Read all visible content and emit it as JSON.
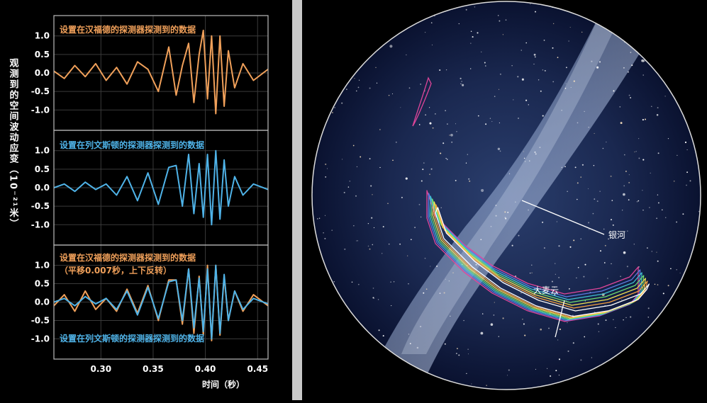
{
  "chart_data": [
    {
      "type": "line",
      "ylabel": "观测到的空间波动应变（10⁻²¹米）",
      "xlabel": "时间（秒）",
      "xlim": [
        0.255,
        0.46
      ],
      "ylim": [
        -1.55,
        1.55
      ],
      "x_ticks": [
        "0.30",
        "0.35",
        "0.40",
        "0.45"
      ],
      "x_tick_values": [
        0.3,
        0.35,
        0.4,
        0.45
      ],
      "y_ticks": [
        "1.0",
        "0.5",
        "0.0",
        "-0.5",
        "-1.0"
      ],
      "y_tick_values": [
        1.0,
        0.5,
        0.0,
        -0.5,
        -1.0
      ],
      "grid": true,
      "colors": {
        "hanford": "#f0a05a",
        "livingston": "#4fb3e8",
        "template": "#ffffff"
      },
      "panels": [
        {
          "label": [
            "设置在汉福德的探测器探测到的数据"
          ],
          "series": [
            {
              "color": "hanford",
              "x": [
                0.255,
                0.265,
                0.275,
                0.285,
                0.295,
                0.305,
                0.315,
                0.325,
                0.335,
                0.345,
                0.355,
                0.365,
                0.372,
                0.378,
                0.384,
                0.389,
                0.394,
                0.398,
                0.402,
                0.406,
                0.41,
                0.414,
                0.418,
                0.422,
                0.428,
                0.436,
                0.446,
                0.46
              ],
              "y": [
                0.05,
                -0.15,
                0.2,
                -0.1,
                0.25,
                -0.2,
                0.15,
                -0.3,
                0.3,
                0.1,
                -0.5,
                0.7,
                -0.6,
                0.2,
                0.8,
                -0.8,
                0.5,
                1.15,
                -0.7,
                1.0,
                -1.1,
                1.0,
                -0.9,
                0.6,
                -0.4,
                0.25,
                -0.2,
                0.1
              ]
            }
          ]
        },
        {
          "label": [
            "设置在列文斯顿的探测器探测到的数据"
          ],
          "series": [
            {
              "color": "livingston",
              "x": [
                0.255,
                0.265,
                0.275,
                0.285,
                0.295,
                0.305,
                0.315,
                0.325,
                0.335,
                0.345,
                0.355,
                0.365,
                0.372,
                0.378,
                0.384,
                0.389,
                0.394,
                0.398,
                0.402,
                0.406,
                0.41,
                0.414,
                0.418,
                0.422,
                0.428,
                0.436,
                0.446,
                0.46
              ],
              "y": [
                0.0,
                0.1,
                -0.1,
                0.15,
                -0.05,
                0.1,
                -0.2,
                0.3,
                -0.35,
                0.4,
                -0.45,
                0.55,
                0.6,
                -0.5,
                0.9,
                -0.7,
                0.65,
                -0.8,
                0.9,
                -1.0,
                1.0,
                -0.85,
                0.75,
                -0.5,
                0.3,
                -0.2,
                0.1,
                -0.05
              ]
            }
          ]
        },
        {
          "label": [
            "设置在汉福德的探测器探测到的数据",
            "（平移0.007秒，上下反转）",
            "设置在列文斯顿的探测器探测到的数据"
          ],
          "series": [
            {
              "color": "hanford",
              "x": [
                0.255,
                0.265,
                0.275,
                0.285,
                0.295,
                0.305,
                0.315,
                0.325,
                0.335,
                0.345,
                0.355,
                0.365,
                0.372,
                0.378,
                0.384,
                0.389,
                0.394,
                0.398,
                0.402,
                0.406,
                0.41,
                0.414,
                0.418,
                0.422,
                0.428,
                0.436,
                0.446,
                0.46
              ],
              "y": [
                -0.1,
                0.2,
                -0.25,
                0.3,
                -0.2,
                0.1,
                -0.25,
                0.35,
                -0.3,
                0.45,
                -0.5,
                0.6,
                0.6,
                -0.6,
                0.9,
                -0.85,
                0.7,
                -0.9,
                1.0,
                -1.05,
                1.0,
                -0.9,
                0.7,
                -0.5,
                0.3,
                -0.25,
                0.2,
                -0.1
              ]
            },
            {
              "color": "livingston",
              "x": [
                0.255,
                0.265,
                0.275,
                0.285,
                0.295,
                0.305,
                0.315,
                0.325,
                0.335,
                0.345,
                0.355,
                0.365,
                0.372,
                0.378,
                0.384,
                0.389,
                0.394,
                0.398,
                0.402,
                0.406,
                0.41,
                0.414,
                0.418,
                0.422,
                0.428,
                0.436,
                0.446,
                0.46
              ],
              "y": [
                0.0,
                0.1,
                -0.1,
                0.15,
                -0.05,
                0.1,
                -0.2,
                0.3,
                -0.35,
                0.4,
                -0.45,
                0.55,
                0.6,
                -0.5,
                0.9,
                -0.7,
                0.65,
                -0.8,
                0.9,
                -1.0,
                1.0,
                -0.85,
                0.75,
                -0.5,
                0.3,
                -0.2,
                0.1,
                -0.05
              ]
            }
          ]
        }
      ]
    }
  ],
  "sky_map": {
    "labels": {
      "milky_way": "银河",
      "lmc": "大麦云"
    },
    "contour_colors": [
      "#e0459a",
      "#5a7be0",
      "#3ec0d0",
      "#6fdc6f",
      "#f0e050",
      "#f5a040",
      "#ffffff"
    ]
  }
}
